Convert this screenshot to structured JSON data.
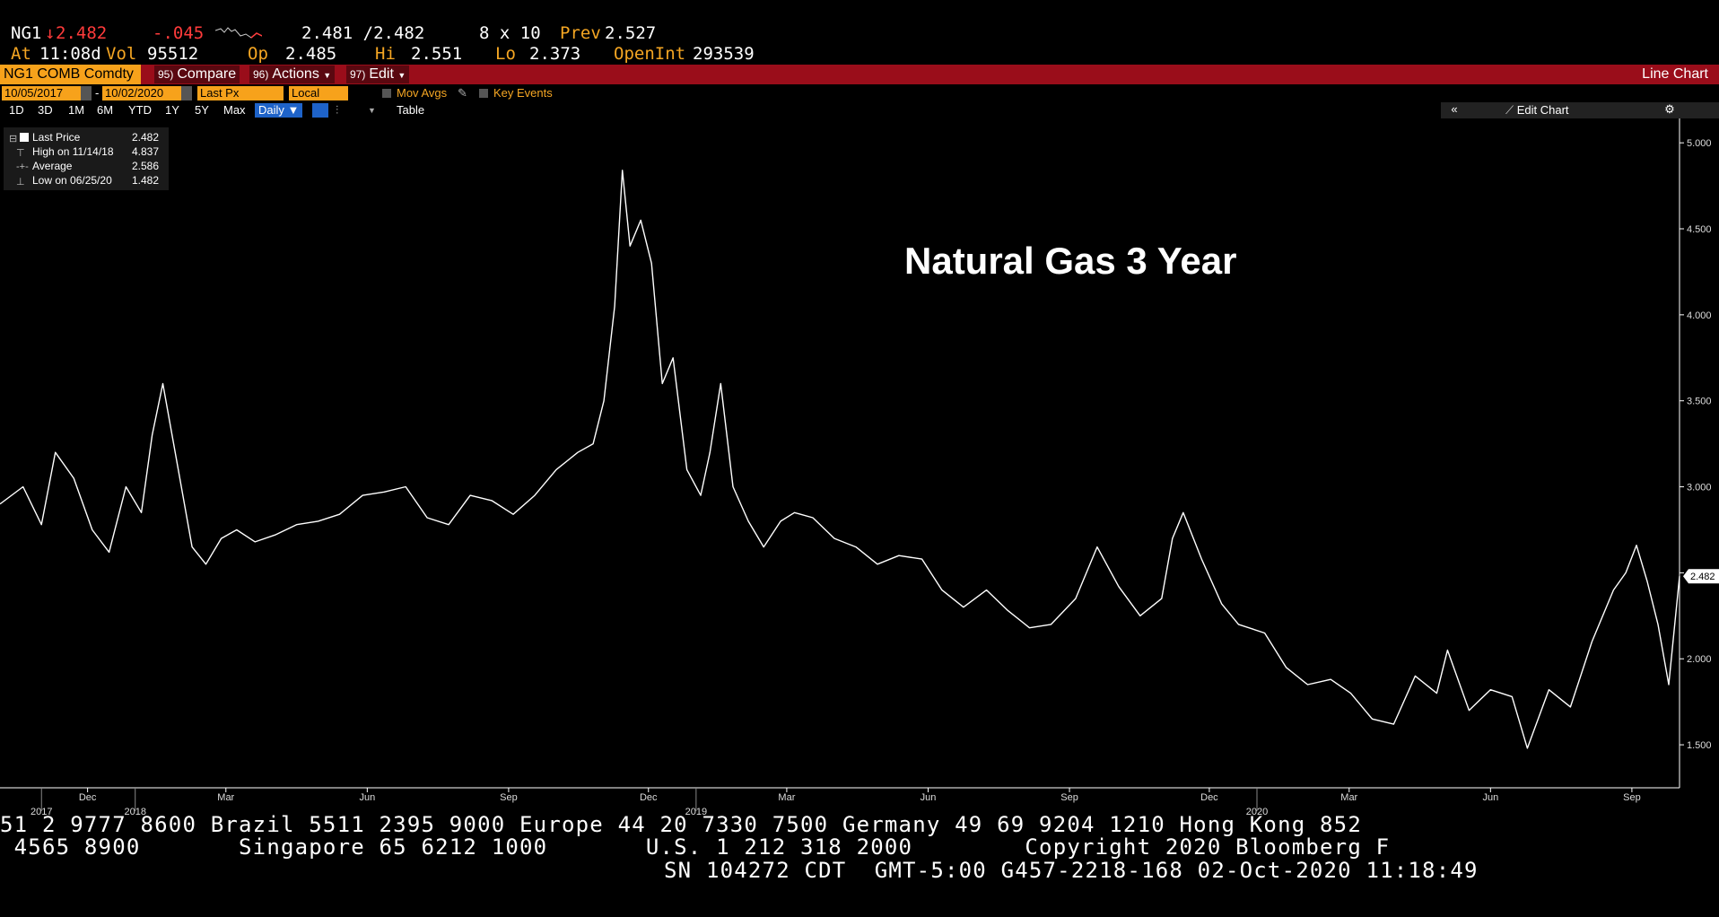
{
  "quote": {
    "ticker": "NG1",
    "arrow": "↓",
    "last": "2.482",
    "change": "-.045",
    "bid_ask": "2.481 /2.482",
    "size": "8 x 10",
    "prev_label": "Prev",
    "prev": "2.527",
    "at_label": "At",
    "time": "11:08d",
    "vol_label": "Vol",
    "vol": "95512",
    "op_label": "Op",
    "op": "2.485",
    "hi_label": "Hi",
    "hi": "2.551",
    "lo_label": "Lo",
    "lo": "2.373",
    "oi_label": "OpenInt",
    "oi": "293539"
  },
  "menubar": {
    "security": "NG1 COMB Comdty",
    "compare_num": "95)",
    "compare": "Compare",
    "actions_num": "96)",
    "actions": "Actions",
    "edit_num": "97)",
    "edit": "Edit",
    "chart_type": "Line Chart"
  },
  "controls": {
    "start_date": "10/05/2017",
    "end_date": "10/02/2020",
    "field": "Last Px",
    "currency": "Local CCY",
    "mov_avgs": "Mov Avgs",
    "key_events": "Key Events",
    "ranges": [
      "1D",
      "3D",
      "1M",
      "6M",
      "YTD",
      "1Y",
      "5Y",
      "Max"
    ],
    "period": "Daily ▼",
    "table": "Table",
    "edit_chart": "Edit Chart"
  },
  "legend": [
    {
      "name": "Last Price",
      "value": "2.482"
    },
    {
      "name": "High on 11/14/18",
      "value": "4.837"
    },
    {
      "name": "Average",
      "value": "2.586"
    },
    {
      "name": "Low on 06/25/20",
      "value": "1.482"
    }
  ],
  "chart_data": {
    "type": "line",
    "title": "Natural Gas 3 Year",
    "x_start": "2017-10-05",
    "x_end": "2020-10-02",
    "ylim": [
      1.25,
      5.1
    ],
    "y_ticks": [
      "5.000",
      "4.500",
      "4.000",
      "3.500",
      "3.000",
      "2.500",
      "2.000",
      "1.500"
    ],
    "y_tick_values": [
      5.0,
      4.5,
      4.0,
      3.5,
      3.0,
      2.5,
      2.0,
      1.5
    ],
    "last_label": "2.482",
    "x_month_ticks": [
      {
        "label": "Dec",
        "date": "2017-12-01"
      },
      {
        "label": "Mar",
        "date": "2018-03-01"
      },
      {
        "label": "Jun",
        "date": "2018-06-01"
      },
      {
        "label": "Sep",
        "date": "2018-09-01"
      },
      {
        "label": "Dec",
        "date": "2018-12-01"
      },
      {
        "label": "Mar",
        "date": "2019-03-01"
      },
      {
        "label": "Jun",
        "date": "2019-06-01"
      },
      {
        "label": "Sep",
        "date": "2019-09-01"
      },
      {
        "label": "Dec",
        "date": "2019-12-01"
      },
      {
        "label": "Mar",
        "date": "2020-03-01"
      },
      {
        "label": "Jun",
        "date": "2020-06-01"
      },
      {
        "label": "Sep",
        "date": "2020-09-01"
      }
    ],
    "x_year_ticks": [
      {
        "label": "2017",
        "date": "2017-11-01"
      },
      {
        "label": "2018",
        "date": "2018-01-01"
      },
      {
        "label": "2019",
        "date": "2019-01-01"
      },
      {
        "label": "2020",
        "date": "2020-01-01"
      }
    ],
    "series": [
      {
        "dates": [
          "2017-10-05",
          "2017-10-20",
          "2017-11-01",
          "2017-11-10",
          "2017-11-22",
          "2017-12-04",
          "2017-12-15",
          "2017-12-26",
          "2018-01-05",
          "2018-01-12",
          "2018-01-19",
          "2018-01-29",
          "2018-02-07",
          "2018-02-16",
          "2018-02-26",
          "2018-03-08",
          "2018-03-20",
          "2018-04-02",
          "2018-04-16",
          "2018-04-30",
          "2018-05-14",
          "2018-05-29",
          "2018-06-12",
          "2018-06-26",
          "2018-07-10",
          "2018-07-24",
          "2018-08-07",
          "2018-08-21",
          "2018-09-04",
          "2018-09-18",
          "2018-10-02",
          "2018-10-16",
          "2018-10-26",
          "2018-11-02",
          "2018-11-09",
          "2018-11-14",
          "2018-11-19",
          "2018-11-26",
          "2018-12-03",
          "2018-12-10",
          "2018-12-17",
          "2018-12-26",
          "2019-01-04",
          "2019-01-10",
          "2019-01-17",
          "2019-01-25",
          "2019-02-04",
          "2019-02-14",
          "2019-02-25",
          "2019-03-06",
          "2019-03-18",
          "2019-04-01",
          "2019-04-15",
          "2019-04-29",
          "2019-05-13",
          "2019-05-28",
          "2019-06-10",
          "2019-06-24",
          "2019-07-09",
          "2019-07-23",
          "2019-08-06",
          "2019-08-20",
          "2019-09-05",
          "2019-09-19",
          "2019-10-03",
          "2019-10-17",
          "2019-10-31",
          "2019-11-07",
          "2019-11-14",
          "2019-11-26",
          "2019-12-09",
          "2019-12-20",
          "2020-01-06",
          "2020-01-20",
          "2020-02-03",
          "2020-02-18",
          "2020-03-02",
          "2020-03-16",
          "2020-03-30",
          "2020-04-13",
          "2020-04-27",
          "2020-05-04",
          "2020-05-18",
          "2020-06-01",
          "2020-06-15",
          "2020-06-25",
          "2020-07-09",
          "2020-07-23",
          "2020-08-06",
          "2020-08-20",
          "2020-08-28",
          "2020-09-04",
          "2020-09-11",
          "2020-09-18",
          "2020-09-25",
          "2020-10-02"
        ],
        "values": [
          2.9,
          3.0,
          2.78,
          3.2,
          3.05,
          2.75,
          2.62,
          3.0,
          2.85,
          3.3,
          3.6,
          3.1,
          2.65,
          2.55,
          2.7,
          2.75,
          2.68,
          2.72,
          2.78,
          2.8,
          2.84,
          2.95,
          2.97,
          3.0,
          2.82,
          2.78,
          2.95,
          2.92,
          2.84,
          2.95,
          3.1,
          3.2,
          3.25,
          3.5,
          4.05,
          4.84,
          4.4,
          4.55,
          4.3,
          3.6,
          3.75,
          3.1,
          2.95,
          3.2,
          3.6,
          3.0,
          2.8,
          2.65,
          2.8,
          2.85,
          2.82,
          2.7,
          2.65,
          2.55,
          2.6,
          2.58,
          2.4,
          2.3,
          2.4,
          2.28,
          2.18,
          2.2,
          2.35,
          2.65,
          2.42,
          2.25,
          2.35,
          2.7,
          2.85,
          2.58,
          2.32,
          2.2,
          2.15,
          1.95,
          1.85,
          1.88,
          1.8,
          1.65,
          1.62,
          1.9,
          1.8,
          2.05,
          1.7,
          1.82,
          1.78,
          1.48,
          1.82,
          1.72,
          2.1,
          2.4,
          2.5,
          2.66,
          2.45,
          2.2,
          1.85,
          2.48
        ]
      }
    ]
  },
  "footer": {
    "line1": "51 2 9777 8600 Brazil 5511 2395 9000 Europe 44 20 7330 7500 Germany 49 69 9204 1210 Hong Kong 852",
    "line2": " 4565 8900       Singapore 65 6212 1000       U.S. 1 212 318 2000        Copyright 2020 Bloomberg F",
    "line3": "SN 104272 CDT  GMT-5:00 G457-2218-168 02-Oct-2020 11:18:49"
  }
}
